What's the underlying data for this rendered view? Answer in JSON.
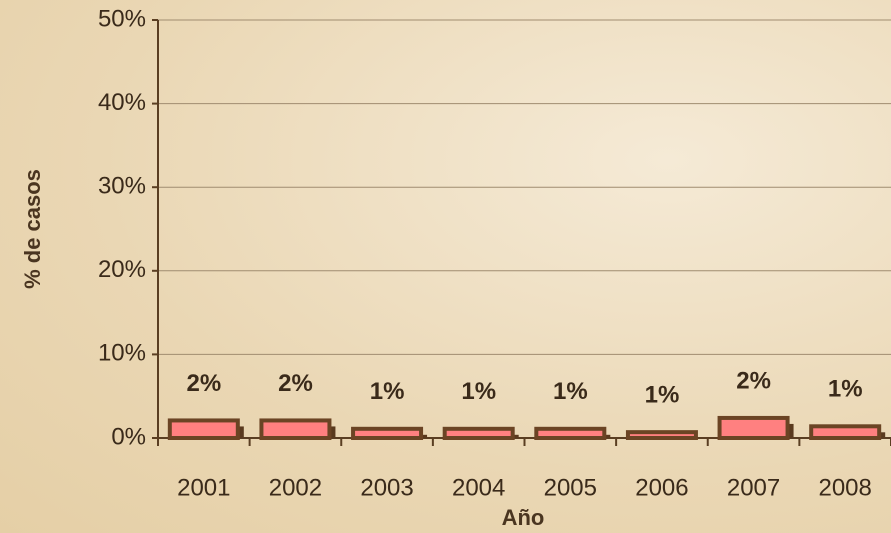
{
  "chart_data": {
    "type": "bar",
    "x_label": "Año",
    "y_label": "% de casos",
    "categories": [
      "2001",
      "2002",
      "2003",
      "2004",
      "2005",
      "2006",
      "2007",
      "2008"
    ],
    "values": [
      2.1,
      2.1,
      1.1,
      1.1,
      1.1,
      0.7,
      2.4,
      1.4
    ],
    "value_labels": [
      "2%",
      "2%",
      "1%",
      "1%",
      "1%",
      "1%",
      "2%",
      "1%"
    ],
    "color": "#ff8080",
    "ylim": [
      0,
      50
    ],
    "yticks": [
      {
        "value": 0,
        "label": "0%"
      },
      {
        "value": 10,
        "label": "10%"
      },
      {
        "value": 20,
        "label": "20%"
      },
      {
        "value": 30,
        "label": "30%"
      },
      {
        "value": 40,
        "label": "40%"
      },
      {
        "value": 50,
        "label": "50%"
      }
    ],
    "grid": true
  }
}
